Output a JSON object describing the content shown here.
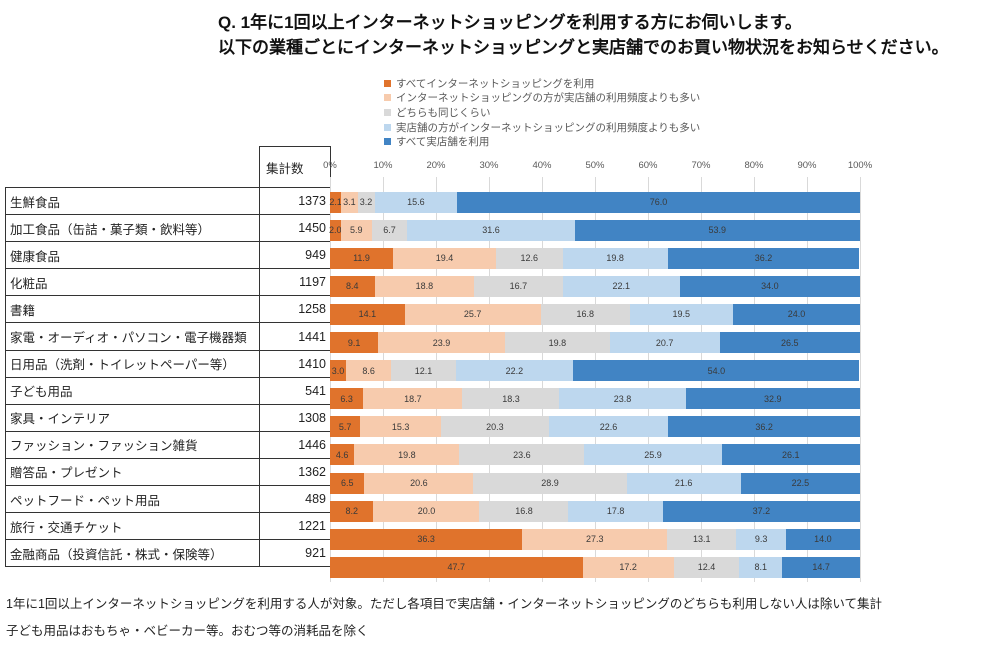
{
  "title": {
    "line1": "Q. 1年に1回以上インターネットショッピングを利用する方にお伺いします。",
    "line2": "以下の業種ごとにインターネットショッピングと実店舗でのお買い物状況をお知らせください。"
  },
  "table": {
    "count_header": "集計数"
  },
  "chart_data": {
    "type": "bar",
    "stacked": true,
    "orientation": "horizontal",
    "xlim": [
      0,
      100
    ],
    "grid": true,
    "legend_position": "top",
    "x_ticks": [
      "0%",
      "10%",
      "20%",
      "30%",
      "40%",
      "50%",
      "60%",
      "70%",
      "80%",
      "90%",
      "100%"
    ],
    "categories": [
      "生鮮食品",
      "加工食品（缶詰・菓子類・飲料等）",
      "健康食品",
      "化粧品",
      "書籍",
      "家電・オーディオ・パソコン・電子機器類",
      "日用品（洗剤・トイレットペーパー等）",
      "子ども用品",
      "家具・インテリア",
      "ファッション・ファッション雑貨",
      "贈答品・プレゼント",
      "ペットフード・ペット用品",
      "旅行・交通チケット",
      "金融商品（投資信託・株式・保険等）"
    ],
    "counts": [
      1373,
      1450,
      949,
      1197,
      1258,
      1441,
      1410,
      541,
      1308,
      1446,
      1362,
      489,
      1221,
      921
    ],
    "series": [
      {
        "name": "すべてインターネットショッピングを利用",
        "color": "#E0732C",
        "values": [
          2.1,
          2.0,
          11.9,
          8.4,
          14.1,
          9.1,
          3.0,
          6.3,
          5.7,
          4.6,
          6.5,
          8.2,
          36.3,
          47.7
        ]
      },
      {
        "name": "インターネットショッピングの方が実店舗の利用頻度よりも多い",
        "color": "#F7CBAD",
        "values": [
          3.1,
          5.9,
          19.4,
          18.8,
          25.7,
          23.9,
          8.6,
          18.7,
          15.3,
          19.8,
          20.6,
          20.0,
          27.3,
          17.2
        ]
      },
      {
        "name": "どちらも同じくらい",
        "color": "#D9D9D9",
        "values": [
          3.2,
          6.7,
          12.6,
          16.7,
          16.8,
          19.8,
          12.1,
          18.3,
          20.3,
          23.6,
          28.9,
          16.8,
          13.1,
          12.4
        ]
      },
      {
        "name": "実店舗の方がインターネットショッピングの利用頻度よりも多い",
        "color": "#BDD7EE",
        "values": [
          15.6,
          31.6,
          19.8,
          22.1,
          19.5,
          20.7,
          22.2,
          23.8,
          22.6,
          25.9,
          21.6,
          17.8,
          9.3,
          8.1
        ]
      },
      {
        "name": "すべて実店舗を利用",
        "color": "#4184C4",
        "values": [
          76.0,
          53.9,
          36.2,
          34.0,
          24.0,
          26.5,
          54.0,
          32.9,
          36.2,
          26.1,
          22.5,
          37.2,
          14.0,
          14.7
        ]
      }
    ]
  },
  "footnotes": [
    "1年に1回以上インターネットショッピングを利用する人が対象。ただし各項目で実店舗・インターネットショッピングのどちらも利用しない人は除いて集計",
    "子ども用品はおもちゃ・ベビーカー等。おむつ等の消耗品を除く"
  ]
}
